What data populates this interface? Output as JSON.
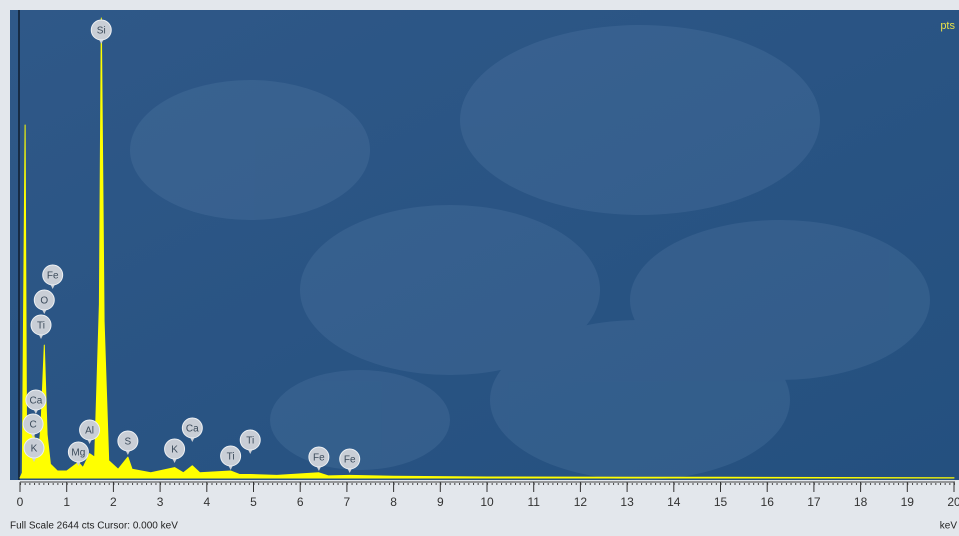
{
  "chart_data": {
    "type": "spectrum",
    "corner_label": "pts",
    "footer": "Full Scale 2644 cts  Cursor: 0.000 keV",
    "x_label": "keV",
    "color": "#ffff00",
    "xlim": [
      0,
      20
    ],
    "ylim": [
      0,
      2644
    ],
    "xticks": [
      0,
      1,
      2,
      3,
      4,
      5,
      6,
      7,
      8,
      9,
      10,
      11,
      12,
      13,
      14,
      15,
      16,
      17,
      18,
      19,
      20
    ],
    "x": [
      0,
      0.05,
      0.11,
      0.14,
      0.2,
      0.27,
      0.32,
      0.4,
      0.45,
      0.52,
      0.58,
      0.65,
      0.8,
      1.0,
      1.25,
      1.35,
      1.49,
      1.6,
      1.7,
      1.74,
      1.8,
      1.9,
      2.1,
      2.31,
      2.4,
      2.8,
      3.31,
      3.5,
      3.69,
      3.85,
      4.51,
      4.7,
      4.93,
      5.5,
      6.4,
      6.6,
      7.06,
      8,
      10,
      15,
      20
    ],
    "values": [
      0,
      30,
      2029,
      300,
      250,
      320,
      200,
      150,
      300,
      764,
      250,
      80,
      40,
      40,
      90,
      60,
      140,
      120,
      1000,
      2644,
      900,
      100,
      50,
      120,
      50,
      30,
      60,
      30,
      70,
      30,
      40,
      20,
      20,
      15,
      30,
      12,
      15,
      10,
      6,
      4,
      2
    ],
    "annotations": [
      {
        "label": "Si",
        "x": 1.74
      },
      {
        "label": "Fe",
        "x": 0.7
      },
      {
        "label": "O",
        "x": 0.52
      },
      {
        "label": "Ti",
        "x": 0.45
      },
      {
        "label": "Ca",
        "x": 0.34
      },
      {
        "label": "C",
        "x": 0.28
      },
      {
        "label": "K",
        "x": 0.3
      },
      {
        "label": "Mg",
        "x": 1.25
      },
      {
        "label": "Al",
        "x": 1.49
      },
      {
        "label": "S",
        "x": 2.31
      },
      {
        "label": "K",
        "x": 3.31
      },
      {
        "label": "Ca",
        "x": 3.69
      },
      {
        "label": "Ti",
        "x": 4.51
      },
      {
        "label": "Ti",
        "x": 4.93
      },
      {
        "label": "Fe",
        "x": 6.4
      },
      {
        "label": "Fe",
        "x": 7.06
      }
    ]
  }
}
